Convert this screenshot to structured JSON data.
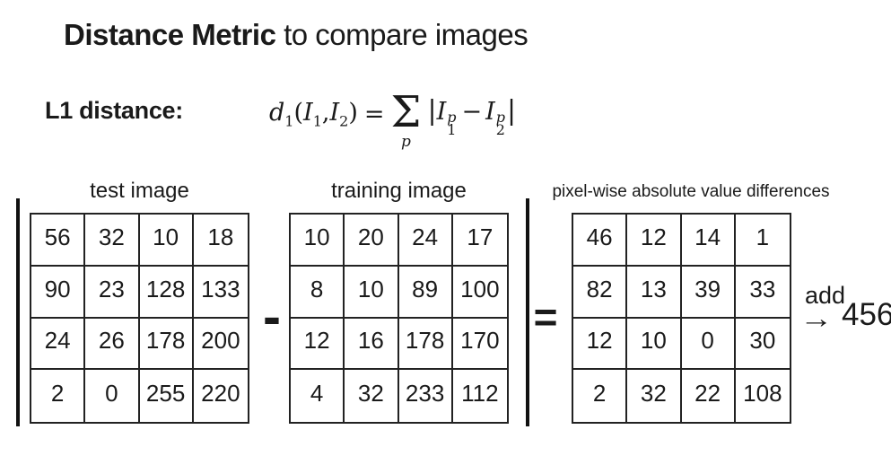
{
  "title": {
    "emphasis": "Distance Metric",
    "rest": " to compare images"
  },
  "formula": {
    "label": "L1 distance:",
    "d_base": "d",
    "d_sub": "1",
    "open_paren": "(",
    "i1_base": "I",
    "i1_sub": "1",
    "comma": ",",
    "i2_base": "I",
    "i2_sub": "2",
    "close_paren": ")",
    "equals": "=",
    "sum_symbol": "Σ",
    "sum_index": "p",
    "abs_open": "|",
    "t1_base": "I",
    "t1_sup": "p",
    "t1_sub": "1",
    "minus": "−",
    "t2_base": "I",
    "t2_sup": "p",
    "t2_sub": "2",
    "abs_close": "|"
  },
  "matrices": [
    {
      "label": "test image",
      "rows": [
        [
          "56",
          "32",
          "10",
          "18"
        ],
        [
          "90",
          "23",
          "128",
          "133"
        ],
        [
          "24",
          "26",
          "178",
          "200"
        ],
        [
          "2",
          "0",
          "255",
          "220"
        ]
      ]
    },
    {
      "label": "training image",
      "rows": [
        [
          "10",
          "20",
          "24",
          "17"
        ],
        [
          "8",
          "10",
          "89",
          "100"
        ],
        [
          "12",
          "16",
          "178",
          "170"
        ],
        [
          "4",
          "32",
          "233",
          "112"
        ]
      ]
    },
    {
      "label": "pixel-wise absolute value differences",
      "rows": [
        [
          "46",
          "12",
          "14",
          "1"
        ],
        [
          "82",
          "13",
          "39",
          "33"
        ],
        [
          "12",
          "10",
          "0",
          "30"
        ],
        [
          "2",
          "32",
          "22",
          "108"
        ]
      ]
    }
  ],
  "operators": {
    "minus": "-",
    "equals": "="
  },
  "result": {
    "add_label": "add",
    "arrow_glyph": "→",
    "total": "456"
  },
  "colors": {
    "background": "#ffffff",
    "text": "#1a1a1a",
    "border": "#222222"
  }
}
